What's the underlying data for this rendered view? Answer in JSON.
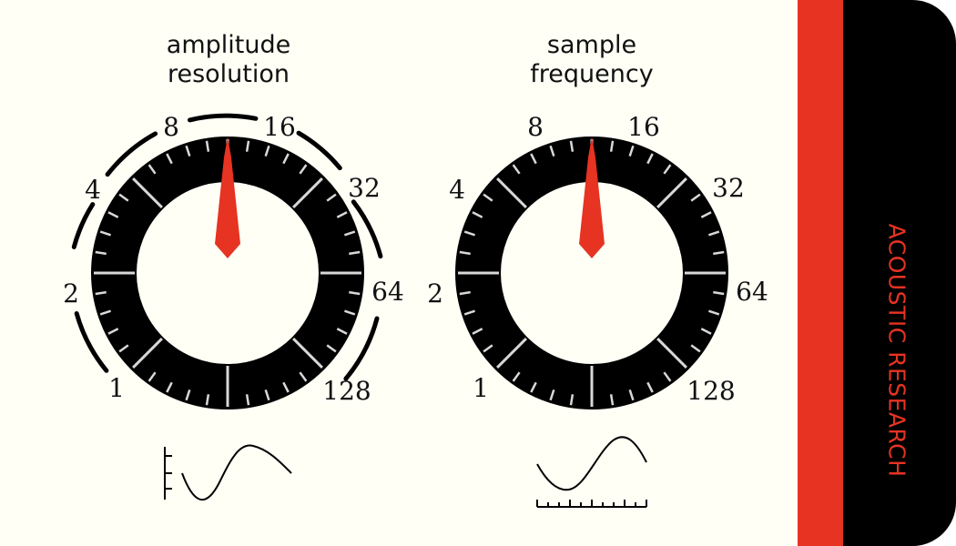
{
  "knobs": [
    {
      "title_line1": "amplitude",
      "title_line2": "resolution",
      "scale": [
        "1",
        "2",
        "4",
        "8",
        "16",
        "32",
        "64",
        "128"
      ],
      "selected": "8",
      "pointer_color": "#e63322"
    },
    {
      "title_line1": "sample",
      "title_line2": "frequency",
      "scale": [
        "1",
        "2",
        "4",
        "8",
        "16",
        "32",
        "64",
        "128"
      ],
      "selected": "8",
      "pointer_color": "#e63322"
    }
  ],
  "brand": "ACOUSTIC RESEARCH",
  "icons": {
    "left": "amplitude-quantization-sine-icon",
    "right": "sampling-sine-icon"
  },
  "colors": {
    "panel": "#fffff6",
    "accent": "#e63322",
    "dial": "#000000",
    "tick": "#d8d8d8"
  }
}
